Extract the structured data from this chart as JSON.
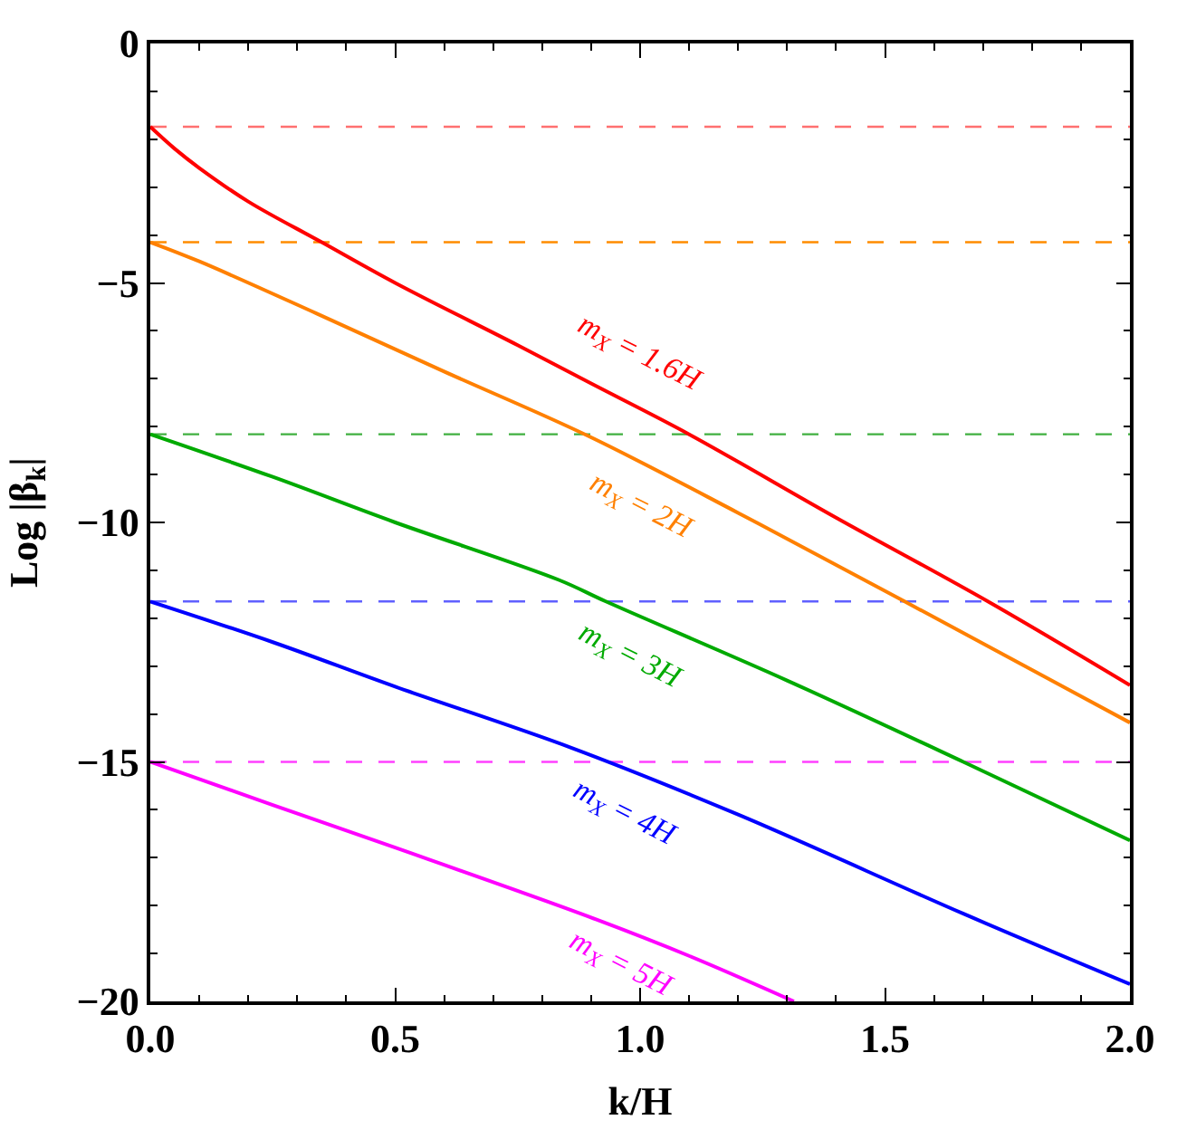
{
  "chart_data": {
    "type": "line",
    "xlabel": "k/H",
    "ylabel": "Log |β$_{k}$|",
    "xlim": [
      0,
      2
    ],
    "xticks": [
      {
        "value": 0,
        "label": "0.0"
      },
      0.5,
      {
        "value": 1,
        "label": "1.0"
      },
      1.5,
      {
        "value": 2,
        "label": "2.0"
      }
    ],
    "ylim": [
      -20,
      0
    ],
    "yticks": [
      {
        "value": -20,
        "label": "−20"
      },
      {
        "value": -15,
        "label": "−15"
      },
      {
        "value": -10,
        "label": "−10"
      },
      {
        "value": -5,
        "label": "−5"
      },
      0
    ],
    "grid": false,
    "legend": false,
    "line_style": "solid",
    "marker": "none",
    "series": [
      {
        "name": "m$_{X}$ = 1.6H",
        "color": "#ff0000",
        "x": [
          0,
          0.05,
          0.1,
          0.2,
          0.35,
          0.5,
          0.75,
          0.9,
          1.1,
          1.4,
          1.71,
          2.0
        ],
        "values": [
          -1.74,
          -2.2,
          -2.6,
          -3.3,
          -4.15,
          -5.0,
          -6.3,
          -7.1,
          -8.16,
          -9.9,
          -11.65,
          -13.4
        ]
      },
      {
        "name": "m$_{X}$ = 2H",
        "color": "#ff8000",
        "x": [
          0,
          0.1,
          0.34,
          0.6,
          0.895,
          1.2,
          1.54,
          2.0
        ],
        "values": [
          -4.15,
          -4.55,
          -5.64,
          -6.85,
          -8.2,
          -9.8,
          -11.65,
          -14.18
        ]
      },
      {
        "name": "m$_{X}$ = 3H",
        "color": "#00aa00",
        "x": [
          0,
          0.25,
          0.5,
          0.834,
          0.93,
          1.3,
          1.66,
          2.0
        ],
        "values": [
          -8.16,
          -9.05,
          -10.0,
          -11.2,
          -11.65,
          -13.3,
          -15.0,
          -16.64
        ]
      },
      {
        "name": "m$_{X}$ = 4H",
        "color": "#0000ff",
        "x": [
          0,
          0.25,
          0.5,
          0.858,
          1.2,
          1.66,
          2.0
        ],
        "values": [
          -11.65,
          -12.5,
          -13.43,
          -14.7,
          -16.1,
          -18.17,
          -19.64
        ]
      },
      {
        "name": "m$_{X}$ = 5H",
        "color": "#ff00ff",
        "x": [
          0,
          0.25,
          0.5,
          0.895,
          1.1,
          1.314
        ],
        "values": [
          -15.0,
          -15.9,
          -16.79,
          -18.23,
          -19.05,
          -20.0
        ]
      }
    ],
    "ref_lines": [
      {
        "axis": "y",
        "value": -1.74,
        "color": "#ff7070",
        "line_style": "dashed"
      },
      {
        "axis": "y",
        "value": -4.15,
        "color": "#ff8c00",
        "line_style": "dashed"
      },
      {
        "axis": "y",
        "value": -8.16,
        "color": "#40b040",
        "line_style": "dashed"
      },
      {
        "axis": "y",
        "value": -11.65,
        "color": "#6060ff",
        "line_style": "dashed"
      },
      {
        "axis": "y",
        "value": -15.0,
        "color": "#ff40ff",
        "line_style": "dashed"
      }
    ]
  }
}
